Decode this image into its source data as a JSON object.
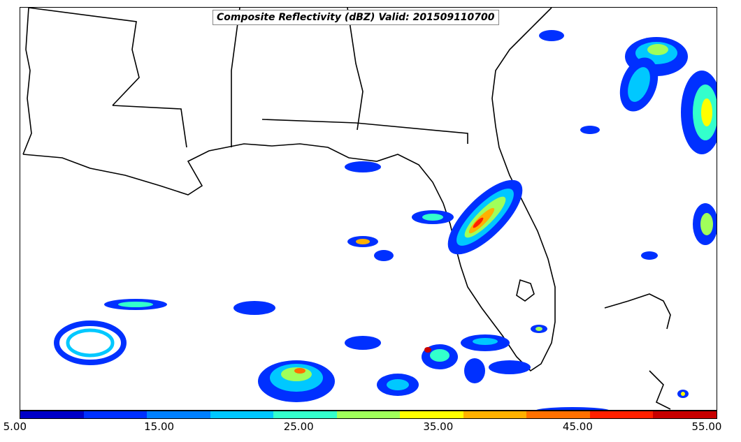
{
  "title": "Composite Reflectivity (dBZ) Valid: 201509110700",
  "colorbar": {
    "colors": [
      "#0000c8",
      "#0030ff",
      "#0080ff",
      "#00c8ff",
      "#33ffcc",
      "#a0ff5a",
      "#ffff00",
      "#ffb000",
      "#ff7000",
      "#ff2000",
      "#c80000"
    ],
    "tick_labels": [
      "5.00",
      "15.00",
      "25.00",
      "35.00",
      "45.00",
      "55.00"
    ],
    "range": [
      5,
      55
    ]
  },
  "colors": {
    "coast": "#000000",
    "frame": "#000000"
  }
}
